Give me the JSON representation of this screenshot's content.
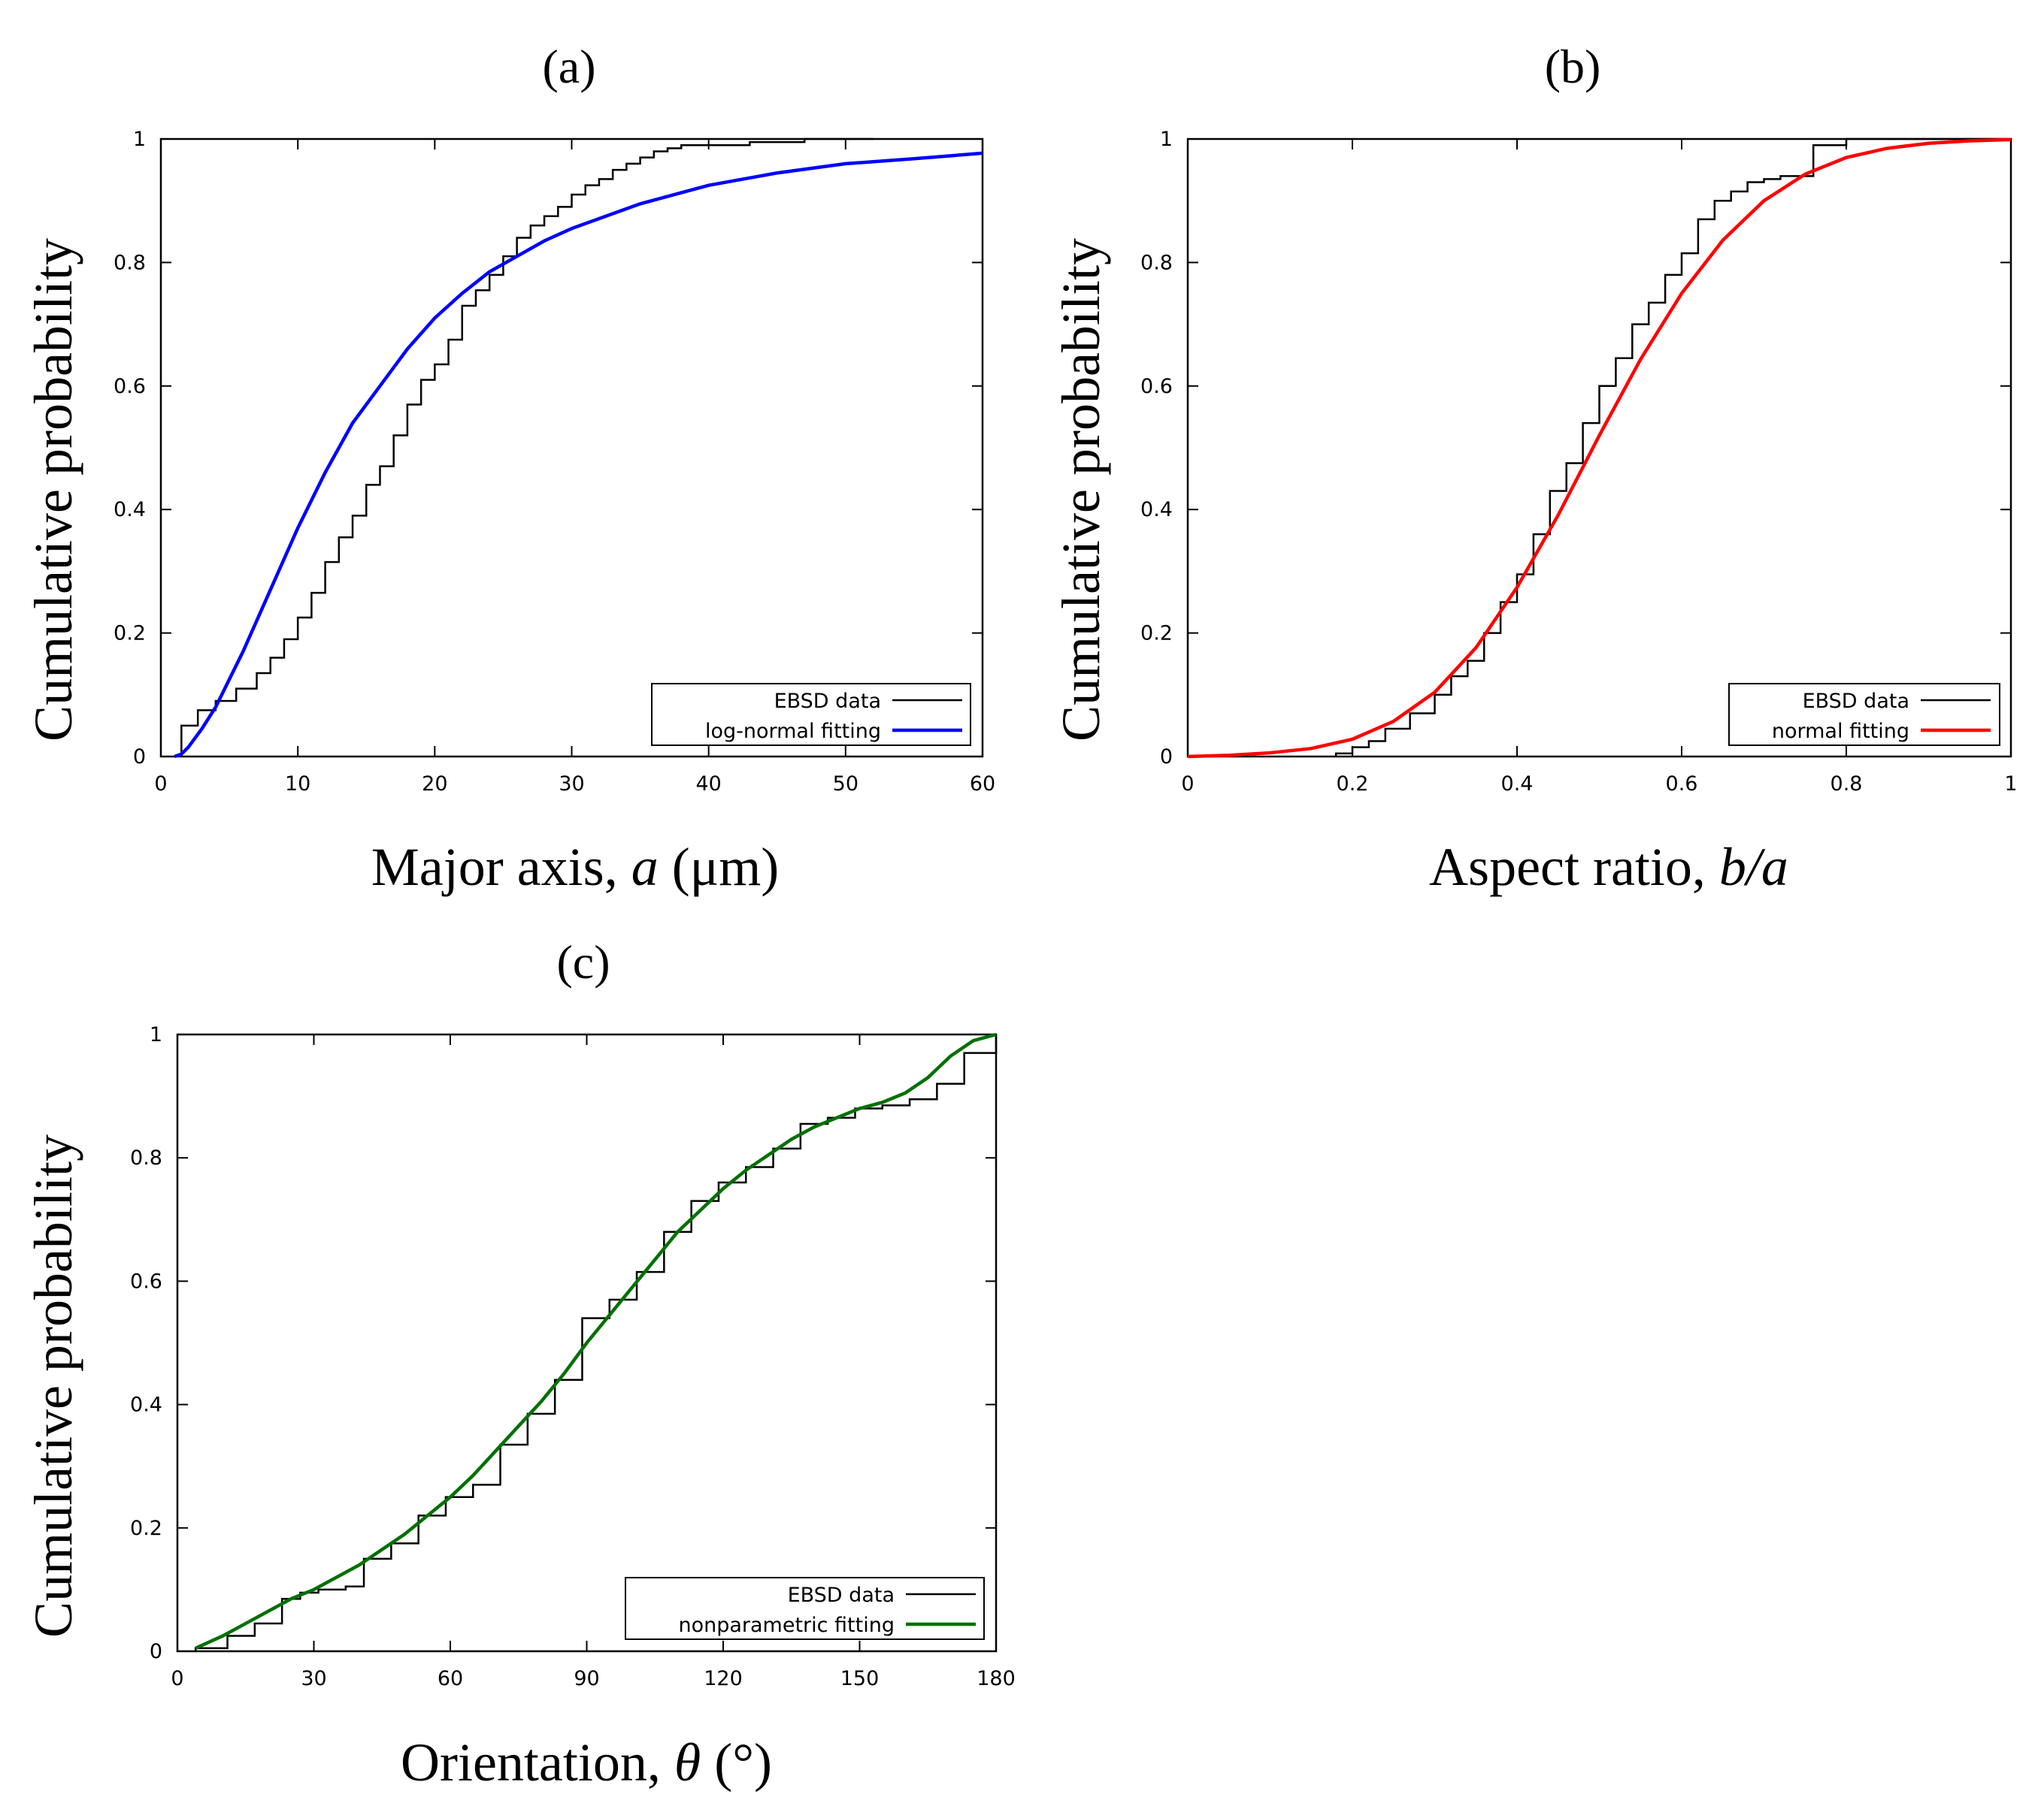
{
  "chart_data": [
    {
      "type": "line",
      "panel_label": "(a)",
      "xlabel_pre": "Major axis, ",
      "xlabel_var": "a",
      "xlabel_post": " (μm)",
      "ylabel": "Cumulative probability",
      "xlim": [
        0,
        60
      ],
      "ylim": [
        0,
        1
      ],
      "xticks": [
        "0",
        "10",
        "20",
        "30",
        "40",
        "50",
        "60"
      ],
      "yticks": [
        "0",
        "0.2",
        "0.4",
        "0.6",
        "0.8",
        "1"
      ],
      "legend_position": "bottom-right",
      "series": [
        {
          "name": "EBSD data",
          "kind": "step",
          "color": "#000000",
          "x": [
            1.5,
            2.7,
            4,
            5.5,
            7,
            8,
            9,
            10,
            11,
            12,
            13,
            14,
            15,
            16,
            17,
            18,
            19,
            20,
            21,
            22,
            23,
            24,
            25,
            26,
            27,
            28,
            29,
            30,
            31,
            32,
            33,
            34,
            35,
            36,
            37,
            38,
            40,
            43,
            47,
            52
          ],
          "y": [
            0.05,
            0.075,
            0.09,
            0.11,
            0.135,
            0.16,
            0.19,
            0.225,
            0.265,
            0.315,
            0.355,
            0.39,
            0.44,
            0.47,
            0.52,
            0.57,
            0.61,
            0.635,
            0.675,
            0.73,
            0.755,
            0.78,
            0.81,
            0.84,
            0.86,
            0.875,
            0.89,
            0.91,
            0.925,
            0.935,
            0.95,
            0.96,
            0.97,
            0.98,
            0.985,
            0.99,
            0.99,
            0.995,
            1,
            1
          ]
        },
        {
          "name": "log-normal fitting",
          "kind": "curve",
          "color": "#0000ff",
          "x": [
            1,
            1.5,
            2,
            3,
            4,
            5,
            6,
            7,
            8,
            9,
            10,
            12,
            14,
            16,
            18,
            20,
            22,
            24,
            26,
            28,
            30,
            35,
            40,
            45,
            50,
            55,
            60
          ],
          "y": [
            0,
            0.004,
            0.015,
            0.045,
            0.08,
            0.125,
            0.17,
            0.22,
            0.27,
            0.32,
            0.37,
            0.46,
            0.54,
            0.6,
            0.66,
            0.71,
            0.75,
            0.785,
            0.81,
            0.835,
            0.855,
            0.895,
            0.925,
            0.945,
            0.96,
            0.968,
            0.977
          ]
        }
      ]
    },
    {
      "type": "line",
      "panel_label": "(b)",
      "xlabel_pre": "Aspect ratio, ",
      "xlabel_var": "b/a",
      "xlabel_post": "",
      "ylabel": "Cumulative probability",
      "xlim": [
        0,
        1
      ],
      "ylim": [
        0,
        1
      ],
      "xticks": [
        "0",
        "0.2",
        "0.4",
        "0.6",
        "0.8",
        "1"
      ],
      "yticks": [
        "0",
        "0.2",
        "0.4",
        "0.6",
        "0.8",
        "1"
      ],
      "legend_position": "bottom-right",
      "series": [
        {
          "name": "EBSD data",
          "kind": "step",
          "color": "#000000",
          "x": [
            0.18,
            0.2,
            0.22,
            0.24,
            0.27,
            0.3,
            0.32,
            0.34,
            0.36,
            0.38,
            0.4,
            0.42,
            0.44,
            0.46,
            0.48,
            0.5,
            0.52,
            0.54,
            0.56,
            0.58,
            0.6,
            0.62,
            0.64,
            0.66,
            0.68,
            0.7,
            0.72,
            0.76,
            0.8,
            0.85,
            0.9,
            1.0
          ],
          "y": [
            0.005,
            0.015,
            0.025,
            0.045,
            0.07,
            0.1,
            0.13,
            0.155,
            0.2,
            0.25,
            0.295,
            0.36,
            0.43,
            0.475,
            0.54,
            0.6,
            0.645,
            0.7,
            0.735,
            0.78,
            0.815,
            0.87,
            0.9,
            0.915,
            0.93,
            0.935,
            0.94,
            0.99,
            1,
            1,
            1,
            1
          ]
        },
        {
          "name": "normal fitting",
          "kind": "curve",
          "color": "#ff0000",
          "x": [
            0,
            0.05,
            0.1,
            0.15,
            0.2,
            0.25,
            0.3,
            0.35,
            0.4,
            0.45,
            0.5,
            0.55,
            0.6,
            0.65,
            0.7,
            0.75,
            0.8,
            0.85,
            0.9,
            0.95,
            1.0
          ],
          "y": [
            0,
            0.002,
            0.006,
            0.013,
            0.028,
            0.057,
            0.104,
            0.176,
            0.274,
            0.391,
            0.52,
            0.643,
            0.75,
            0.836,
            0.9,
            0.943,
            0.97,
            0.985,
            0.993,
            0.997,
            0.999
          ]
        }
      ]
    },
    {
      "type": "line",
      "panel_label": "(c)",
      "xlabel_pre": "Orientation, ",
      "xlabel_var": "θ",
      "xlabel_post": " (°)",
      "ylabel": "Cumulative probability",
      "xlim": [
        0,
        180
      ],
      "ylim": [
        0,
        1
      ],
      "xticks": [
        "0",
        "30",
        "60",
        "90",
        "120",
        "150",
        "180"
      ],
      "yticks": [
        "0",
        "0.2",
        "0.4",
        "0.6",
        "0.8",
        "1"
      ],
      "legend_position": "bottom-right",
      "series": [
        {
          "name": "EBSD data",
          "kind": "step",
          "color": "#000000",
          "x": [
            4,
            11,
            17,
            23,
            27,
            31,
            37,
            41,
            47,
            53,
            59,
            65,
            71,
            77,
            83,
            89,
            95,
            101,
            107,
            113,
            119,
            125,
            131,
            137,
            143,
            149,
            155,
            161,
            167,
            173,
            180
          ],
          "y": [
            0.005,
            0.025,
            0.045,
            0.085,
            0.095,
            0.1,
            0.105,
            0.15,
            0.175,
            0.22,
            0.25,
            0.27,
            0.335,
            0.385,
            0.44,
            0.54,
            0.57,
            0.615,
            0.68,
            0.73,
            0.76,
            0.785,
            0.815,
            0.855,
            0.865,
            0.88,
            0.885,
            0.895,
            0.92,
            0.97,
            1
          ]
        },
        {
          "name": "nonparametric fitting",
          "kind": "curve",
          "color": "#007000",
          "x": [
            4,
            10,
            15,
            20,
            25,
            30,
            35,
            40,
            45,
            50,
            55,
            60,
            65,
            70,
            75,
            80,
            85,
            90,
            95,
            100,
            105,
            110,
            115,
            120,
            125,
            130,
            135,
            140,
            145,
            150,
            155,
            160,
            165,
            170,
            175,
            180
          ],
          "y": [
            0.005,
            0.025,
            0.045,
            0.065,
            0.085,
            0.1,
            0.12,
            0.14,
            0.165,
            0.19,
            0.22,
            0.25,
            0.285,
            0.325,
            0.365,
            0.405,
            0.45,
            0.5,
            0.545,
            0.59,
            0.635,
            0.68,
            0.715,
            0.75,
            0.78,
            0.805,
            0.83,
            0.85,
            0.865,
            0.88,
            0.89,
            0.905,
            0.93,
            0.965,
            0.99,
            1.0
          ]
        }
      ]
    }
  ]
}
